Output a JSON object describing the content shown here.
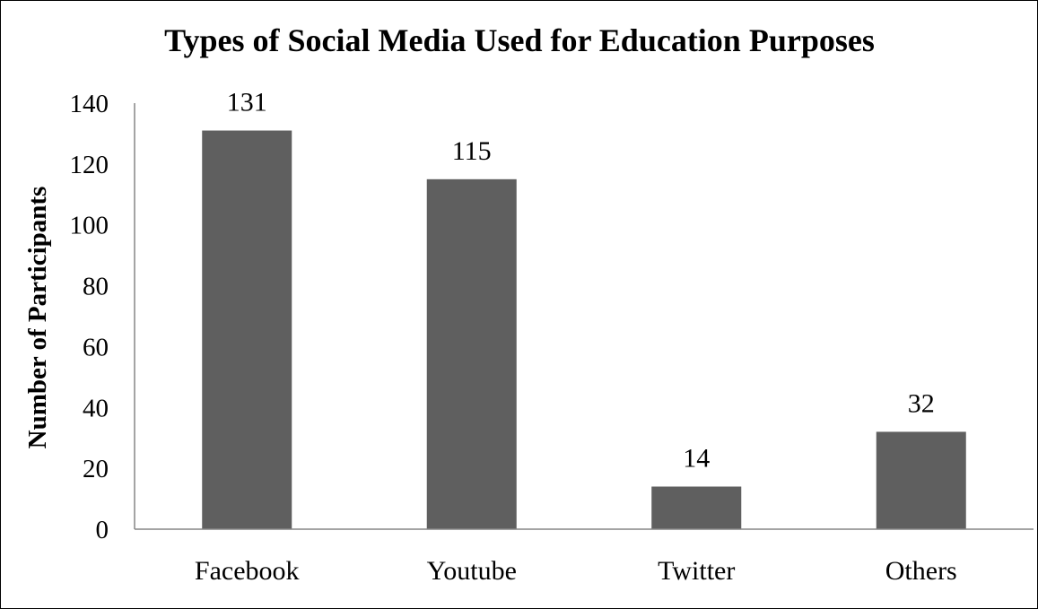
{
  "chart_data": {
    "type": "bar",
    "title": "Types of Social Media Used for Education Purposes",
    "xlabel": "",
    "ylabel": "Number of Participants",
    "categories": [
      "Facebook",
      "Youtube",
      "Twitter",
      "Others"
    ],
    "values": [
      131,
      115,
      14,
      32
    ],
    "data_labels": [
      "131",
      "115",
      "14",
      "32"
    ],
    "ylim": [
      0,
      140
    ],
    "yticks": [
      0,
      20,
      40,
      60,
      80,
      100,
      120,
      140
    ],
    "bar_color": "#5f5f5f",
    "grid": false,
    "legend": "none"
  }
}
